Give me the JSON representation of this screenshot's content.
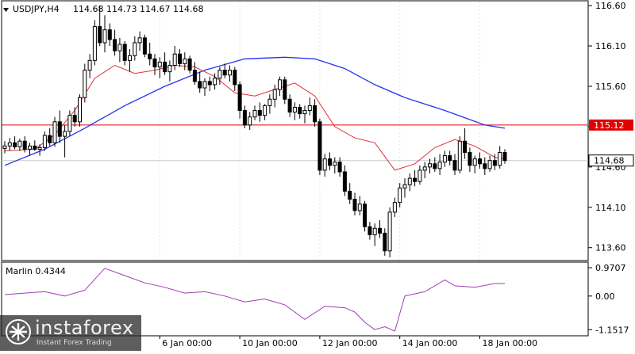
{
  "header": {
    "symbol": "USDJPY,H4",
    "ohlc": "114.68 114.73 114.67 114.68",
    "menu_icon": "triangle-down-icon"
  },
  "indicator": {
    "name": "Marlin",
    "value_text": "Marlin 0.4344",
    "levels": [
      "0.9707",
      "0.00",
      "-1.1517"
    ]
  },
  "price_labels": {
    "resistance": "115.12",
    "current": "114.68"
  },
  "colors": {
    "background": "#ffffff",
    "grid": "#c8c8c8",
    "candle": "#000000",
    "ma_fast": "#e0303a",
    "ma_slow": "#2432f0",
    "level_line": "#e00000",
    "oscillator": "#a03cb4"
  },
  "watermark": {
    "brand": "instaforex",
    "sub": "Instant Forex Trading"
  },
  "chart_data": {
    "type": "candlestick",
    "symbol": "USDJPY",
    "timeframe": "H4",
    "y_ticks": [
      "116.60",
      "116.10",
      "115.60",
      "115.10",
      "114.60",
      "114.10",
      "113.60"
    ],
    "ylim": [
      113.45,
      116.65
    ],
    "x_ticks": [
      "6 Jan 00:00",
      "10 Jan 00:00",
      "12 Jan 00:00",
      "14 Jan 00:00",
      "18 Jan 00:00"
    ],
    "x_tick_index": [
      31,
      47,
      63,
      79,
      95
    ],
    "horizontal_level": 115.12,
    "last_price": 114.68,
    "candles": [
      [
        114.83,
        114.92,
        114.77,
        114.86
      ],
      [
        114.86,
        114.96,
        114.8,
        114.9
      ],
      [
        114.9,
        114.98,
        114.82,
        114.85
      ],
      [
        114.85,
        114.95,
        114.8,
        114.92
      ],
      [
        114.92,
        114.98,
        114.78,
        114.82
      ],
      [
        114.82,
        114.9,
        114.74,
        114.86
      ],
      [
        114.86,
        114.93,
        114.8,
        114.82
      ],
      [
        114.82,
        114.88,
        114.74,
        114.84
      ],
      [
        114.84,
        115.04,
        114.8,
        114.99
      ],
      [
        114.99,
        115.08,
        114.86,
        114.9
      ],
      [
        114.9,
        115.22,
        114.85,
        115.16
      ],
      [
        115.16,
        115.3,
        114.9,
        114.98
      ],
      [
        114.98,
        115.12,
        114.72,
        115.04
      ],
      [
        115.04,
        115.3,
        114.98,
        115.24
      ],
      [
        115.24,
        115.34,
        115.1,
        115.16
      ],
      [
        115.16,
        115.5,
        115.1,
        115.46
      ],
      [
        115.46,
        115.88,
        115.4,
        115.8
      ],
      [
        115.8,
        116.0,
        115.7,
        115.92
      ],
      [
        115.92,
        116.42,
        115.86,
        116.34
      ],
      [
        116.34,
        116.6,
        116.1,
        116.14
      ],
      [
        116.14,
        116.48,
        116.02,
        116.3
      ],
      [
        116.3,
        116.38,
        116.1,
        116.18
      ],
      [
        116.18,
        116.3,
        115.98,
        116.04
      ],
      [
        116.04,
        116.2,
        115.9,
        116.12
      ],
      [
        116.12,
        116.16,
        115.86,
        115.92
      ],
      [
        115.92,
        116.06,
        115.78,
        115.98
      ],
      [
        115.98,
        116.22,
        115.92,
        116.14
      ],
      [
        116.14,
        116.28,
        116.04,
        116.2
      ],
      [
        116.2,
        116.24,
        115.96,
        116.0
      ],
      [
        116.0,
        116.14,
        115.86,
        115.94
      ],
      [
        115.94,
        116.0,
        115.74,
        115.84
      ],
      [
        115.84,
        115.96,
        115.7,
        115.9
      ],
      [
        115.9,
        116.02,
        115.74,
        115.78
      ],
      [
        115.78,
        115.92,
        115.66,
        115.86
      ],
      [
        115.86,
        116.1,
        115.8,
        116.0
      ],
      [
        116.0,
        116.06,
        115.84,
        115.88
      ],
      [
        115.88,
        116.02,
        115.8,
        115.94
      ],
      [
        115.94,
        115.98,
        115.76,
        115.8
      ],
      [
        115.8,
        115.9,
        115.62,
        115.66
      ],
      [
        115.66,
        115.78,
        115.52,
        115.58
      ],
      [
        115.58,
        115.7,
        115.48,
        115.66
      ],
      [
        115.66,
        115.72,
        115.54,
        115.62
      ],
      [
        115.62,
        115.76,
        115.56,
        115.7
      ],
      [
        115.7,
        115.84,
        115.62,
        115.8
      ],
      [
        115.8,
        115.88,
        115.7,
        115.74
      ],
      [
        115.74,
        115.86,
        115.66,
        115.8
      ],
      [
        115.8,
        115.84,
        115.54,
        115.62
      ],
      [
        115.62,
        115.66,
        115.2,
        115.3
      ],
      [
        115.3,
        115.36,
        115.08,
        115.12
      ],
      [
        115.12,
        115.28,
        115.06,
        115.22
      ],
      [
        115.22,
        115.36,
        115.18,
        115.3
      ],
      [
        115.3,
        115.4,
        115.16,
        115.24
      ],
      [
        115.24,
        115.38,
        115.18,
        115.36
      ],
      [
        115.36,
        115.5,
        115.26,
        115.44
      ],
      [
        115.44,
        115.62,
        115.34,
        115.56
      ],
      [
        115.56,
        115.72,
        115.48,
        115.68
      ],
      [
        115.68,
        115.72,
        115.38,
        115.44
      ],
      [
        115.44,
        115.5,
        115.22,
        115.28
      ],
      [
        115.28,
        115.4,
        115.18,
        115.34
      ],
      [
        115.34,
        115.38,
        115.2,
        115.26
      ],
      [
        115.26,
        115.36,
        115.14,
        115.3
      ],
      [
        115.3,
        115.46,
        115.24,
        115.36
      ],
      [
        115.36,
        115.44,
        115.1,
        115.16
      ],
      [
        115.16,
        115.2,
        114.5,
        114.56
      ],
      [
        114.56,
        114.76,
        114.48,
        114.7
      ],
      [
        114.7,
        114.78,
        114.56,
        114.62
      ],
      [
        114.62,
        114.72,
        114.52,
        114.66
      ],
      [
        114.66,
        114.72,
        114.48,
        114.54
      ],
      [
        114.54,
        114.62,
        114.24,
        114.3
      ],
      [
        114.3,
        114.4,
        114.14,
        114.2
      ],
      [
        114.2,
        114.28,
        114.0,
        114.06
      ],
      [
        114.06,
        114.24,
        114.0,
        114.14
      ],
      [
        114.14,
        114.18,
        113.8,
        113.86
      ],
      [
        113.86,
        113.92,
        113.7,
        113.76
      ],
      [
        113.76,
        113.9,
        113.62,
        113.84
      ],
      [
        113.84,
        113.94,
        113.72,
        113.78
      ],
      [
        113.78,
        113.84,
        113.5,
        113.56
      ],
      [
        113.56,
        114.1,
        113.48,
        114.04
      ],
      [
        114.04,
        114.22,
        113.98,
        114.16
      ],
      [
        114.16,
        114.4,
        114.1,
        114.34
      ],
      [
        114.34,
        114.46,
        114.22,
        114.38
      ],
      [
        114.38,
        114.52,
        114.3,
        114.46
      ],
      [
        114.46,
        114.56,
        114.36,
        114.42
      ],
      [
        114.42,
        114.62,
        114.38,
        114.56
      ],
      [
        114.56,
        114.66,
        114.46,
        114.6
      ],
      [
        114.6,
        114.7,
        114.52,
        114.64
      ],
      [
        114.64,
        114.72,
        114.54,
        114.58
      ],
      [
        114.58,
        114.76,
        114.5,
        114.66
      ],
      [
        114.66,
        114.8,
        114.6,
        114.74
      ],
      [
        114.74,
        114.8,
        114.62,
        114.68
      ],
      [
        114.68,
        114.76,
        114.5,
        114.56
      ],
      [
        114.56,
        114.98,
        114.52,
        114.92
      ],
      [
        114.92,
        115.08,
        114.7,
        114.78
      ],
      [
        114.78,
        114.84,
        114.54,
        114.62
      ],
      [
        114.62,
        114.74,
        114.52,
        114.7
      ],
      [
        114.7,
        114.78,
        114.58,
        114.64
      ],
      [
        114.64,
        114.72,
        114.5,
        114.58
      ],
      [
        114.58,
        114.74,
        114.54,
        114.68
      ],
      [
        114.68,
        114.76,
        114.56,
        114.62
      ],
      [
        114.62,
        114.86,
        114.58,
        114.78
      ],
      [
        114.78,
        114.82,
        114.64,
        114.68
      ]
    ],
    "ma_fast": [
      [
        0,
        114.8
      ],
      [
        6,
        114.82
      ],
      [
        10,
        115.0
      ],
      [
        14,
        115.3
      ],
      [
        18,
        115.7
      ],
      [
        22,
        115.86
      ],
      [
        26,
        115.76
      ],
      [
        30,
        115.8
      ],
      [
        34,
        115.86
      ],
      [
        38,
        115.84
      ],
      [
        42,
        115.72
      ],
      [
        46,
        115.52
      ],
      [
        50,
        115.48
      ],
      [
        54,
        115.56
      ],
      [
        58,
        115.64
      ],
      [
        62,
        115.48
      ],
      [
        66,
        115.1
      ],
      [
        70,
        114.96
      ],
      [
        74,
        114.9
      ],
      [
        78,
        114.56
      ],
      [
        82,
        114.64
      ],
      [
        86,
        114.84
      ],
      [
        90,
        114.94
      ],
      [
        94,
        114.86
      ],
      [
        98,
        114.72
      ],
      [
        100,
        114.7
      ]
    ],
    "ma_slow": [
      [
        0,
        114.62
      ],
      [
        8,
        114.82
      ],
      [
        16,
        115.08
      ],
      [
        24,
        115.36
      ],
      [
        32,
        115.6
      ],
      [
        40,
        115.8
      ],
      [
        48,
        115.94
      ],
      [
        56,
        115.96
      ],
      [
        62,
        115.94
      ],
      [
        68,
        115.82
      ],
      [
        74,
        115.62
      ],
      [
        80,
        115.46
      ],
      [
        88,
        115.3
      ],
      [
        96,
        115.12
      ],
      [
        100,
        115.08
      ]
    ],
    "oscillator": {
      "name": "Marlin",
      "current": 0.4344,
      "levels": [
        0.9707,
        0.0,
        -1.1517
      ],
      "ylim": [
        -1.28,
        1.08
      ],
      "values": [
        [
          0,
          0.05
        ],
        [
          4,
          0.1
        ],
        [
          8,
          0.15
        ],
        [
          12,
          0.0
        ],
        [
          16,
          0.2
        ],
        [
          20,
          0.95
        ],
        [
          24,
          0.7
        ],
        [
          28,
          0.45
        ],
        [
          32,
          0.3
        ],
        [
          36,
          0.1
        ],
        [
          40,
          0.15
        ],
        [
          44,
          0.0
        ],
        [
          48,
          -0.2
        ],
        [
          52,
          -0.1
        ],
        [
          56,
          -0.3
        ],
        [
          60,
          -0.8
        ],
        [
          64,
          -0.35
        ],
        [
          68,
          -0.4
        ],
        [
          70,
          -0.55
        ],
        [
          72,
          -0.9
        ],
        [
          74,
          -1.15
        ],
        [
          76,
          -1.05
        ],
        [
          78,
          -1.2
        ],
        [
          80,
          0.0
        ],
        [
          84,
          0.15
        ],
        [
          88,
          0.55
        ],
        [
          90,
          0.35
        ],
        [
          94,
          0.3
        ],
        [
          98,
          0.43
        ],
        [
          100,
          0.43
        ]
      ]
    }
  }
}
